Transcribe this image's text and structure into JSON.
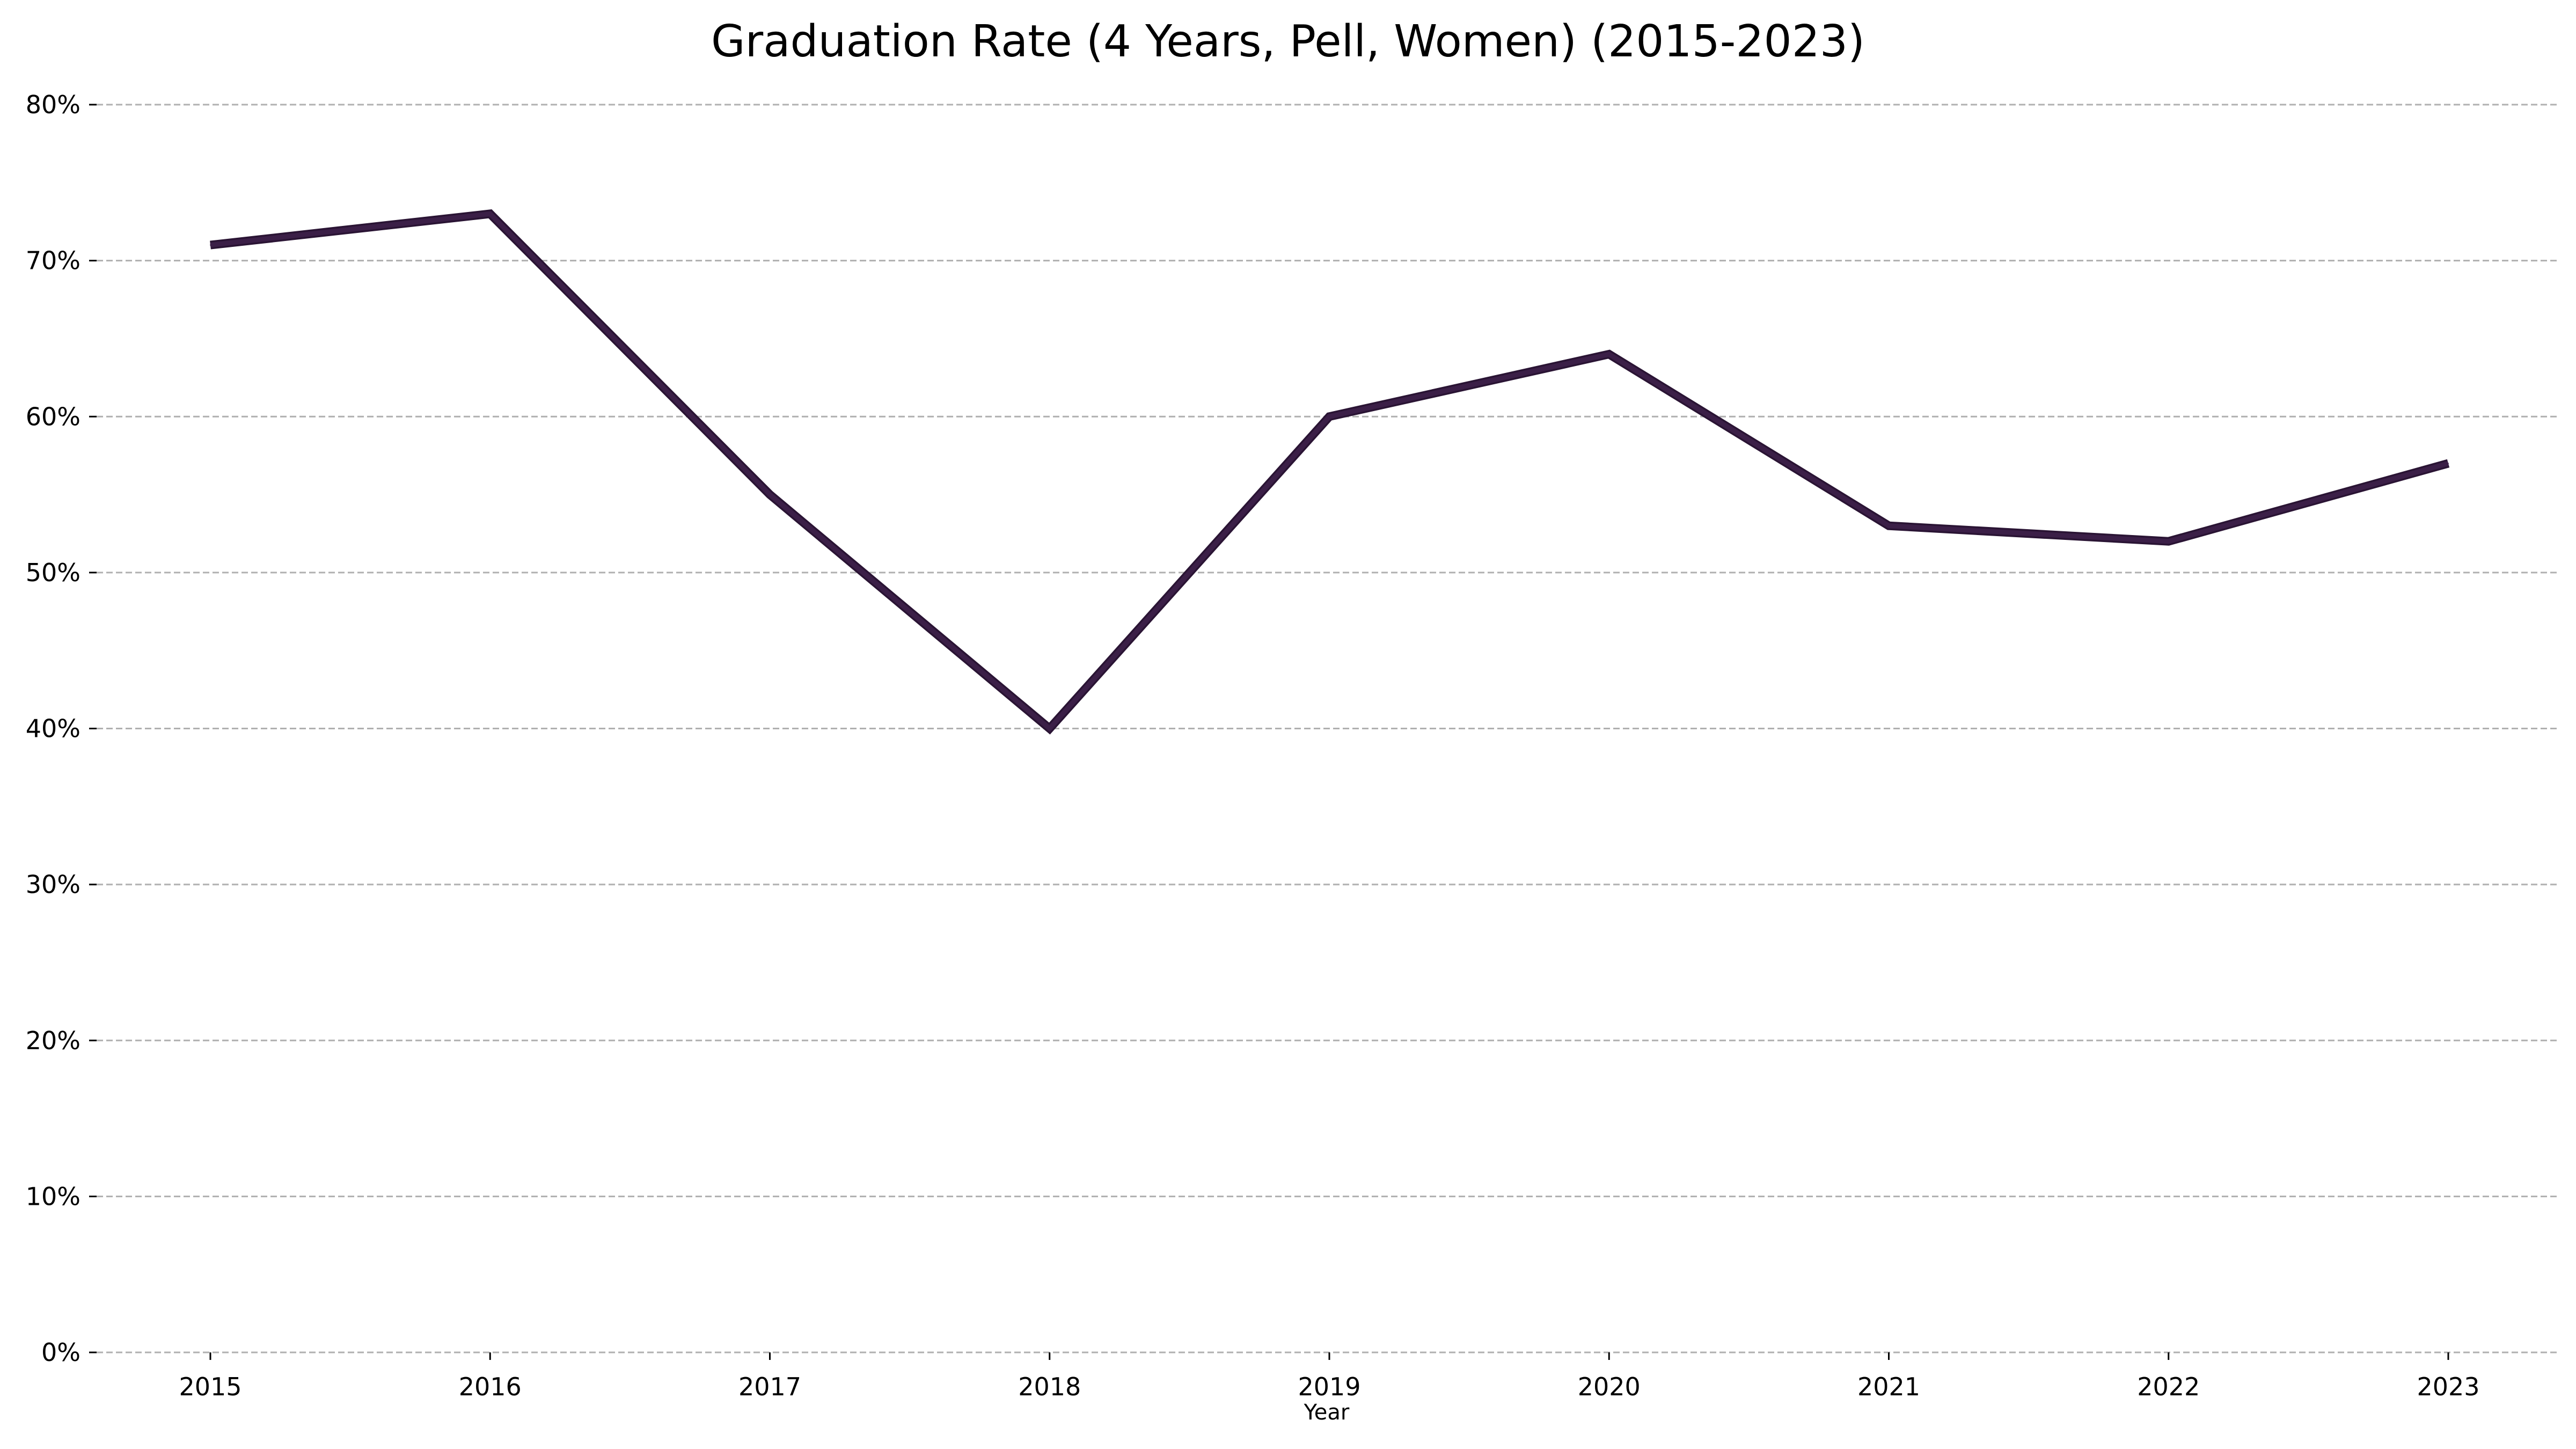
{
  "chart_data": {
    "type": "line",
    "title": "Graduation Rate (4 Years, Pell, Women) (2015-2023)",
    "xlabel": "Year",
    "ylabel": "",
    "categories": [
      "2015",
      "2016",
      "2017",
      "2018",
      "2019",
      "2020",
      "2021",
      "2022",
      "2023"
    ],
    "series": [
      {
        "values": [
          71,
          73,
          55,
          40,
          60,
          64,
          53,
          52,
          57
        ]
      }
    ],
    "ylim": [
      0,
      80
    ],
    "yticks": [
      0,
      10,
      20,
      30,
      40,
      50,
      60,
      70,
      80
    ],
    "ytick_labels": [
      "0%",
      "10%",
      "20%",
      "30%",
      "40%",
      "50%",
      "60%",
      "70%",
      "80%"
    ],
    "grid": "y-dashed",
    "line_color": "#3b1f47",
    "line_outline_color": "#2a1434",
    "grid_color": "#b0b0b0"
  }
}
